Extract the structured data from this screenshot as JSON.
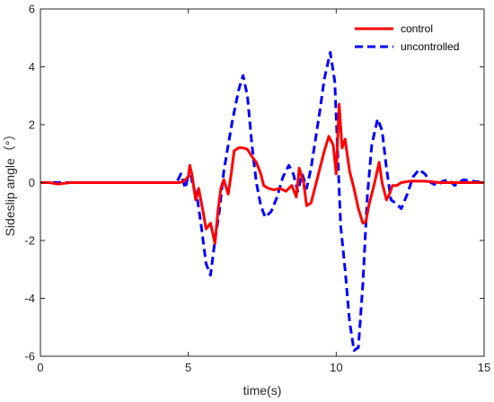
{
  "chart_data": {
    "type": "line",
    "title": "",
    "xlabel": "time(s)",
    "ylabel": "Sideslip angle（°）",
    "xlim": [
      0,
      15
    ],
    "ylim": [
      -6,
      6
    ],
    "xticks": [
      "0",
      "5",
      "10",
      "15"
    ],
    "yticks": [
      "-6",
      "-4",
      "-2",
      "0",
      "2",
      "4",
      "6"
    ],
    "grid": false,
    "legend_position": "top-right",
    "series": [
      {
        "name": "control",
        "color": "#ff0000",
        "style": "solid",
        "x": [
          0,
          0.3,
          0.6,
          1.0,
          2.0,
          3.0,
          4.0,
          4.7,
          4.85,
          5.0,
          5.05,
          5.12,
          5.25,
          5.35,
          5.5,
          5.6,
          5.75,
          5.9,
          6.0,
          6.1,
          6.2,
          6.35,
          6.45,
          6.55,
          6.7,
          6.85,
          7.0,
          7.15,
          7.3,
          7.45,
          7.55,
          7.7,
          7.9,
          8.1,
          8.3,
          8.5,
          8.65,
          8.75,
          8.9,
          9.0,
          9.15,
          9.3,
          9.45,
          9.6,
          9.75,
          9.9,
          10.0,
          10.1,
          10.2,
          10.3,
          10.45,
          10.6,
          10.75,
          10.9,
          11.0,
          11.1,
          11.3,
          11.45,
          11.55,
          11.7,
          11.8,
          11.9,
          12.05,
          12.2,
          12.5,
          13.0,
          13.5,
          14.0,
          14.5,
          15.0
        ],
        "y": [
          0,
          0,
          -0.05,
          0,
          0,
          0,
          0,
          0,
          0.05,
          0.2,
          0.6,
          0.3,
          -0.6,
          -0.2,
          -1.0,
          -1.6,
          -1.4,
          -2.1,
          -1.0,
          -0.2,
          0.1,
          -0.4,
          0.3,
          1.1,
          1.2,
          1.2,
          1.15,
          0.9,
          0.7,
          0.3,
          -0.1,
          -0.2,
          -0.25,
          -0.2,
          -0.3,
          -0.1,
          -0.5,
          0.5,
          0.0,
          -0.8,
          -0.7,
          -0.1,
          0.5,
          1.1,
          1.6,
          1.3,
          0.3,
          2.7,
          1.2,
          1.5,
          0.4,
          -0.2,
          -0.9,
          -1.4,
          -1.35,
          -0.8,
          0.0,
          0.7,
          0.0,
          -0.6,
          -0.4,
          -0.1,
          -0.1,
          0.0,
          0.05,
          0.05,
          0.0,
          0.0,
          0.0,
          0.0
        ]
      },
      {
        "name": "uncontrolled",
        "color": "#0000ff",
        "style": "dashed",
        "x": [
          0,
          0.3,
          0.6,
          1.0,
          2.0,
          3.0,
          4.0,
          4.6,
          4.75,
          4.9,
          5.05,
          5.15,
          5.3,
          5.45,
          5.6,
          5.75,
          5.9,
          6.05,
          6.2,
          6.35,
          6.5,
          6.7,
          6.85,
          7.0,
          7.15,
          7.3,
          7.45,
          7.6,
          7.8,
          8.0,
          8.2,
          8.4,
          8.55,
          8.7,
          8.85,
          9.0,
          9.15,
          9.3,
          9.45,
          9.6,
          9.8,
          9.95,
          10.05,
          10.15,
          10.3,
          10.45,
          10.6,
          10.75,
          10.9,
          11.05,
          11.2,
          11.4,
          11.55,
          11.7,
          11.85,
          12.0,
          12.2,
          12.4,
          12.6,
          12.8,
          13.0,
          13.2,
          13.4,
          13.6,
          13.8,
          14.0,
          14.3,
          14.6,
          15.0
        ],
        "y": [
          0,
          0,
          0,
          0,
          0,
          0,
          0,
          0,
          0.3,
          -0.2,
          0.5,
          -0.1,
          -0.5,
          -1.6,
          -2.8,
          -3.2,
          -2.0,
          -1.0,
          0.4,
          1.3,
          2.2,
          3.2,
          3.7,
          3.0,
          1.3,
          0.0,
          -0.8,
          -1.2,
          -1.0,
          -0.5,
          0.2,
          0.6,
          0.3,
          -0.3,
          0.3,
          -0.2,
          0.5,
          1.5,
          2.5,
          3.6,
          4.5,
          3.5,
          1.0,
          -1.5,
          -3.0,
          -4.8,
          -5.8,
          -5.7,
          -3.5,
          -0.5,
          1.3,
          2.2,
          1.8,
          0.5,
          -0.6,
          -0.7,
          -0.9,
          -0.4,
          0.2,
          0.45,
          0.3,
          0.0,
          -0.1,
          0.05,
          0.1,
          -0.1,
          0.1,
          0.05,
          0.0
        ]
      }
    ]
  }
}
